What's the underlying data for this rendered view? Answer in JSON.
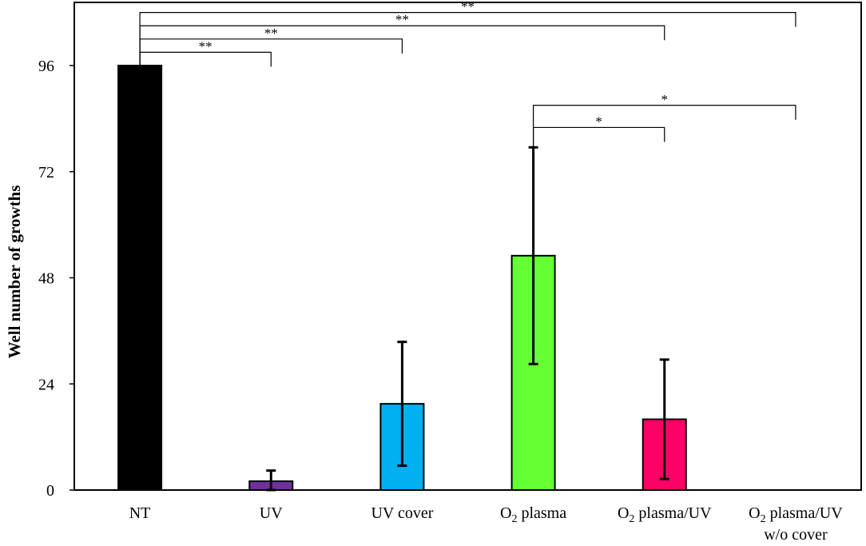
{
  "chart_data": {
    "type": "bar",
    "title": "",
    "xlabel": "",
    "ylabel": "Well number of growths",
    "ylim": [
      0,
      106
    ],
    "yticks": [
      0,
      24,
      48,
      72,
      96
    ],
    "grid": false,
    "legend": "none",
    "categories": [
      {
        "parts": [
          {
            "text": "NT"
          }
        ]
      },
      {
        "parts": [
          {
            "text": "UV"
          }
        ]
      },
      {
        "parts": [
          {
            "text": "UV cover"
          }
        ]
      },
      {
        "parts": [
          {
            "text": "O"
          },
          {
            "text": "2",
            "sub": true
          },
          {
            "text": " plasma"
          }
        ]
      },
      {
        "parts": [
          {
            "text": "O"
          },
          {
            "text": "2",
            "sub": true
          },
          {
            "text": " plasma/UV"
          }
        ]
      },
      {
        "parts": [
          {
            "text": "O"
          },
          {
            "text": "2",
            "sub": true
          },
          {
            "text": " plasma/UV"
          }
        ],
        "line2": "w/o cover"
      }
    ],
    "values": [
      96,
      2,
      19.5,
      53,
      16,
      0
    ],
    "errors": [
      0,
      2.4,
      14,
      24.5,
      13.5,
      0
    ],
    "colors": [
      "#000000",
      "#7030a0",
      "#00b0f0",
      "#66ff33",
      "#ff0066",
      "#ffffff"
    ],
    "significance": [
      {
        "from": 0,
        "to": 1,
        "y": 99,
        "label": "**"
      },
      {
        "from": 0,
        "to": 2,
        "y": 102,
        "label": "**"
      },
      {
        "from": 0,
        "to": 4,
        "y": 105,
        "label": "**"
      },
      {
        "from": 0,
        "to": 5,
        "y": 108,
        "label": "**"
      },
      {
        "from": 3,
        "to": 4,
        "y": 82,
        "label": "*"
      },
      {
        "from": 3,
        "to": 5,
        "y": 87,
        "label": "*"
      }
    ]
  }
}
